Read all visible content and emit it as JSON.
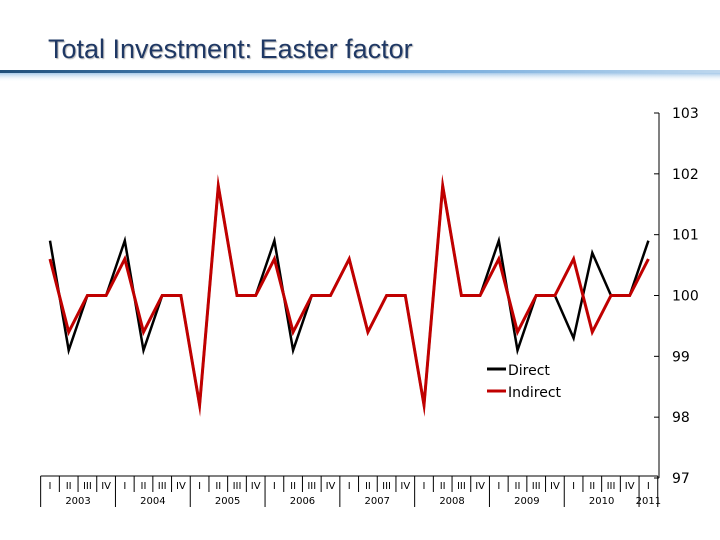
{
  "title": "Total Investment: Easter factor",
  "colors": {
    "direct": "#000000",
    "indirect": "#c00000",
    "title": "#1f3864",
    "rule": "#2e75b6"
  },
  "chart_data": {
    "type": "line",
    "title": "Total Investment: Easter factor",
    "xlabel": "",
    "ylabel": "",
    "ylim": [
      97,
      103
    ],
    "yticks": [
      103,
      102,
      101,
      100,
      99,
      98,
      97
    ],
    "y_axis_position": "right",
    "grid": false,
    "legend_position": "center",
    "quarters": [
      "I",
      "II",
      "III",
      "IV",
      "I",
      "II",
      "III",
      "IV",
      "I",
      "II",
      "III",
      "IV",
      "I",
      "II",
      "III",
      "IV",
      "I",
      "II",
      "III",
      "IV",
      "I",
      "II",
      "III",
      "IV",
      "I",
      "II",
      "III",
      "IV",
      "I",
      "II",
      "III",
      "IV",
      "I"
    ],
    "years": [
      "2003",
      "2004",
      "2005",
      "2006",
      "2007",
      "2008",
      "2009",
      "2010",
      "2011"
    ],
    "series": [
      {
        "name": "Direct",
        "color": "#000000",
        "values": [
          100.9,
          99.1,
          100,
          100,
          100.9,
          99.1,
          100,
          100,
          98.2,
          101.8,
          100,
          100,
          100.9,
          99.1,
          100,
          100,
          100.6,
          99.4,
          100,
          100,
          98.2,
          101.8,
          100,
          100,
          100.9,
          99.1,
          100,
          100,
          99.3,
          100.7,
          100,
          100,
          100.9
        ]
      },
      {
        "name": "Indirect",
        "color": "#c00000",
        "values": [
          100.6,
          99.4,
          100,
          100,
          100.6,
          99.4,
          100,
          100,
          98.2,
          101.8,
          100,
          100,
          100.6,
          99.4,
          100,
          100,
          100.6,
          99.4,
          100,
          100,
          98.2,
          101.8,
          100,
          100,
          100.6,
          99.4,
          100,
          100,
          100.6,
          99.4,
          100,
          100,
          100.6
        ]
      }
    ]
  }
}
